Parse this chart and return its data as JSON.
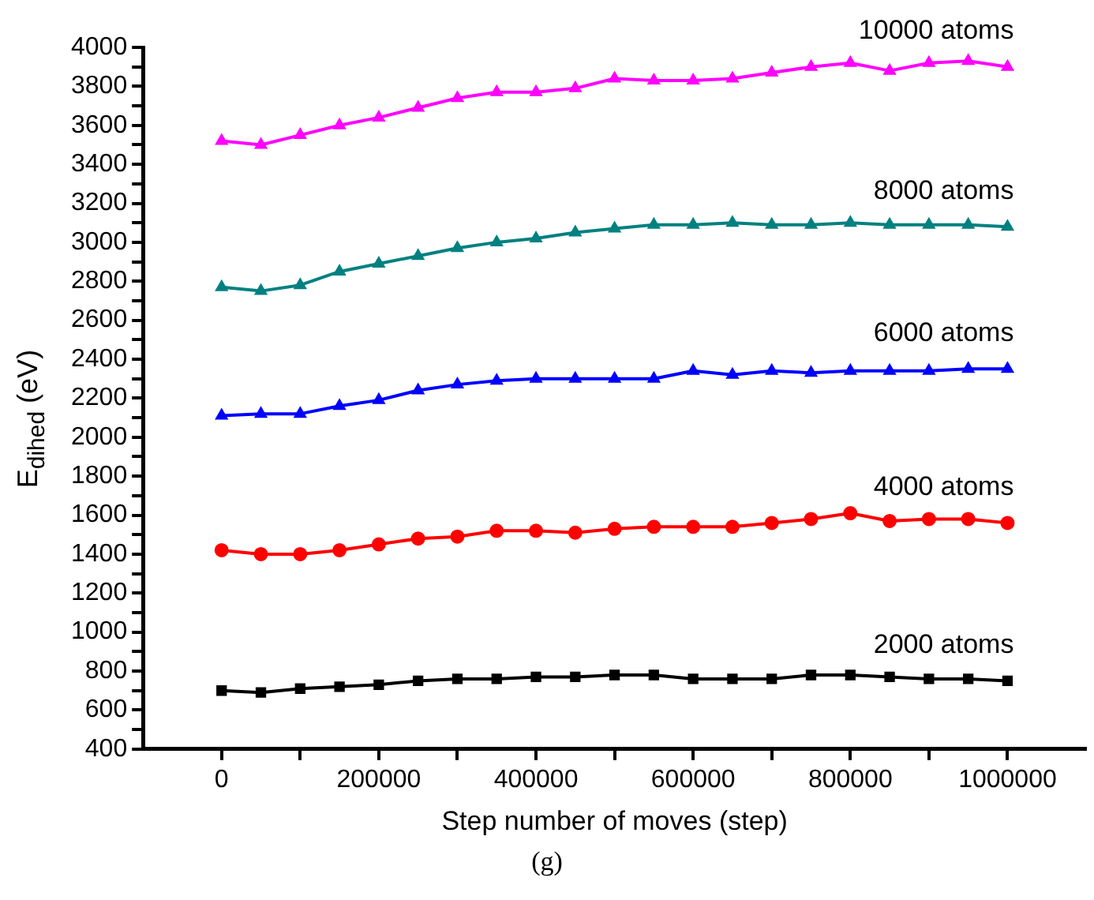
{
  "chart_data": {
    "type": "line",
    "xlabel": "Step number of moves (step)",
    "ylabel": "E$_{dihed}$ (eV)",
    "annotations": [
      "(g)"
    ],
    "x": [
      0,
      50000,
      100000,
      150000,
      200000,
      250000,
      300000,
      350000,
      400000,
      450000,
      500000,
      550000,
      600000,
      650000,
      700000,
      750000,
      800000,
      850000,
      900000,
      950000,
      1000000
    ],
    "series": [
      {
        "name": "2000 atoms",
        "color": "#000000",
        "marker": "square",
        "values": [
          700,
          690,
          710,
          720,
          730,
          750,
          760,
          760,
          770,
          770,
          780,
          780,
          760,
          760,
          760,
          780,
          780,
          770,
          760,
          760,
          750
        ]
      },
      {
        "name": "4000 atoms",
        "color": "#ff0000",
        "marker": "circle",
        "values": [
          1420,
          1400,
          1400,
          1420,
          1450,
          1480,
          1490,
          1520,
          1520,
          1510,
          1530,
          1540,
          1540,
          1540,
          1560,
          1580,
          1610,
          1570,
          1580,
          1580,
          1560
        ]
      },
      {
        "name": "6000 atoms",
        "color": "#0000ff",
        "marker": "triangle",
        "values": [
          2110,
          2120,
          2120,
          2160,
          2190,
          2240,
          2270,
          2290,
          2300,
          2300,
          2300,
          2300,
          2340,
          2320,
          2340,
          2330,
          2340,
          2340,
          2340,
          2350,
          2350
        ]
      },
      {
        "name": "8000 atoms",
        "color": "#008080",
        "marker": "triangle",
        "values": [
          2770,
          2750,
          2780,
          2850,
          2890,
          2930,
          2970,
          3000,
          3020,
          3050,
          3070,
          3090,
          3090,
          3100,
          3090,
          3090,
          3100,
          3090,
          3090,
          3090,
          3080
        ]
      },
      {
        "name": "10000 atoms",
        "color": "#ff00ff",
        "marker": "triangle",
        "values": [
          3520,
          3500,
          3550,
          3600,
          3640,
          3690,
          3740,
          3770,
          3770,
          3790,
          3840,
          3830,
          3830,
          3840,
          3870,
          3900,
          3920,
          3880,
          3920,
          3930,
          3900
        ]
      }
    ],
    "xlim": [
      -100000,
      1100000
    ],
    "xticks": [
      0,
      {
        "value": 100000,
        "label": null
      },
      200000,
      {
        "value": 300000,
        "label": null
      },
      400000,
      {
        "value": 500000,
        "label": null
      },
      600000,
      {
        "value": 700000,
        "label": null
      },
      800000,
      {
        "value": 900000,
        "label": null
      },
      1000000
    ],
    "ylim": [
      400,
      4000
    ],
    "yticks": [
      400,
      {
        "value": 500,
        "label": null
      },
      600,
      {
        "value": 700,
        "label": null
      },
      800,
      {
        "value": 900,
        "label": null
      },
      1000,
      {
        "value": 1100,
        "label": null
      },
      1200,
      {
        "value": 1300,
        "label": null
      },
      1400,
      {
        "value": 1500,
        "label": null
      },
      1600,
      {
        "value": 1700,
        "label": null
      },
      1800,
      {
        "value": 1900,
        "label": null
      },
      2000,
      {
        "value": 2100,
        "label": null
      },
      2200,
      {
        "value": 2300,
        "label": null
      },
      2400,
      {
        "value": 2500,
        "label": null
      },
      2600,
      {
        "value": 2700,
        "label": null
      },
      2800,
      {
        "value": 2900,
        "label": null
      },
      3000,
      {
        "value": 3100,
        "label": null
      },
      3200,
      {
        "value": 3300,
        "label": null
      },
      3400,
      {
        "value": 3500,
        "label": null
      },
      3600,
      {
        "value": 3700,
        "label": null
      },
      3800,
      {
        "value": 3900,
        "label": null
      },
      4000
    ],
    "grid": false,
    "legend": false,
    "line_style": "solid"
  }
}
